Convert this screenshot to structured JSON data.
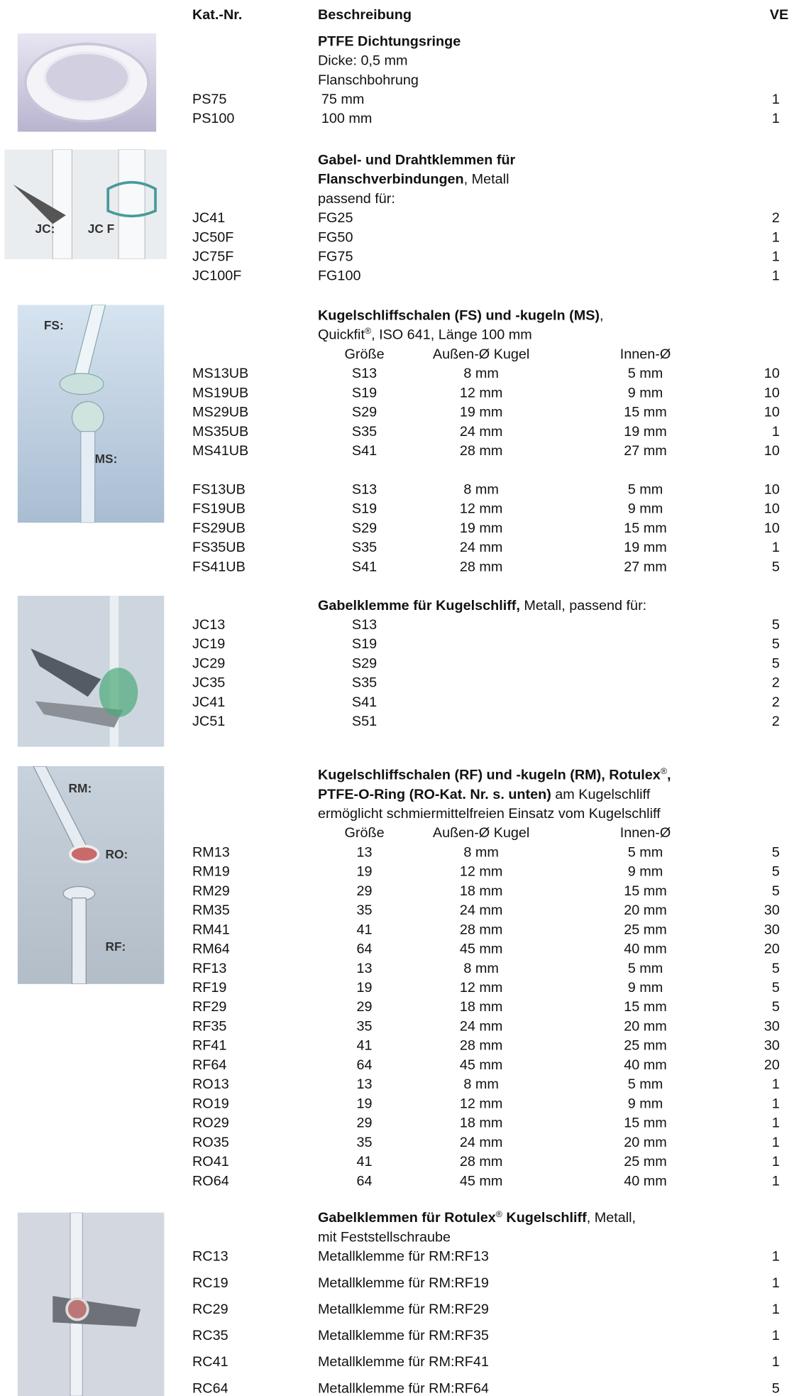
{
  "header": {
    "kat": "Kat.-Nr.",
    "desc": "Beschreibung",
    "ve": "VE"
  },
  "sections": [
    {
      "lines": [
        [
          {
            "text": "PTFE Dichtungsringe",
            "style": "b"
          }
        ],
        [
          {
            "text": "Dicke: 0,5 mm",
            "style": "n"
          }
        ],
        [
          {
            "text": "Flanschbohrung",
            "style": "n"
          }
        ]
      ],
      "rows": [
        {
          "code": "PS75",
          "cells": [
            "75 mm"
          ],
          "ve": "1"
        },
        {
          "code": "PS100",
          "cells": [
            "100 mm"
          ],
          "ve": "1"
        }
      ]
    },
    {
      "lines": [
        [
          {
            "text": "Gabel- und Drahtklemmen für",
            "style": "b"
          }
        ],
        [
          {
            "text": "Flanschverbindungen",
            "style": "b"
          },
          {
            "text": ", Metall",
            "style": "n"
          }
        ],
        [
          {
            "text": "passend für:",
            "style": "n"
          }
        ]
      ],
      "rows": [
        {
          "code": "JC41",
          "cells": [
            "FG25"
          ],
          "ve": "2"
        },
        {
          "code": "JC50F",
          "cells": [
            "FG50"
          ],
          "ve": "1"
        },
        {
          "code": "JC75F",
          "cells": [
            "FG75"
          ],
          "ve": "1"
        },
        {
          "code": "JC100F",
          "cells": [
            "FG100"
          ],
          "ve": "1"
        }
      ]
    },
    {
      "lines": [
        [
          {
            "text": "Kugelschliffschalen (FS) und -kugeln (MS)",
            "style": "b"
          },
          {
            "text": ",",
            "style": "n"
          }
        ],
        [
          {
            "text": "Quickfit",
            "style": "n"
          },
          {
            "text": "®",
            "style": "sup"
          },
          {
            "text": ", ISO 641, Länge 100 mm",
            "style": "n"
          }
        ]
      ],
      "columns": [
        "Größe",
        "Außen-Ø Kugel",
        "Innen-Ø"
      ],
      "rows": [
        {
          "code": "MS13UB",
          "cells": [
            "S13",
            "8 mm",
            "5 mm"
          ],
          "ve": "10"
        },
        {
          "code": "MS19UB",
          "cells": [
            "S19",
            "12 mm",
            "9 mm"
          ],
          "ve": "10"
        },
        {
          "code": "MS29UB",
          "cells": [
            "S29",
            "19 mm",
            "15 mm"
          ],
          "ve": "10"
        },
        {
          "code": "MS35UB",
          "cells": [
            "S35",
            "24 mm",
            "19 mm"
          ],
          "ve": "1"
        },
        {
          "code": "MS41UB",
          "cells": [
            "S41",
            "28 mm",
            "27 mm"
          ],
          "ve": "10"
        },
        {
          "code": "FS13UB",
          "cells": [
            "S13",
            "8 mm",
            "5 mm"
          ],
          "ve": "10"
        },
        {
          "code": "FS19UB",
          "cells": [
            "S19",
            "12 mm",
            "9 mm"
          ],
          "ve": "10"
        },
        {
          "code": "FS29UB",
          "cells": [
            "S29",
            "19 mm",
            "15 mm"
          ],
          "ve": "10"
        },
        {
          "code": "FS35UB",
          "cells": [
            "S35",
            "24 mm",
            "19 mm"
          ],
          "ve": "1"
        },
        {
          "code": "FS41UB",
          "cells": [
            "S41",
            "28 mm",
            "27 mm"
          ],
          "ve": "5"
        }
      ]
    },
    {
      "lines": [
        [
          {
            "text": "Gabelklemme für Kugelschliff,",
            "style": "b"
          },
          {
            "text": " Metall, passend für:",
            "style": "n"
          }
        ]
      ],
      "rows": [
        {
          "code": "JC13",
          "cells": [
            "S13"
          ],
          "ve": "5"
        },
        {
          "code": "JC19",
          "cells": [
            "S19"
          ],
          "ve": "5"
        },
        {
          "code": "JC29",
          "cells": [
            "S29"
          ],
          "ve": "5"
        },
        {
          "code": "JC35",
          "cells": [
            "S35"
          ],
          "ve": "2"
        },
        {
          "code": "JC41",
          "cells": [
            "S41"
          ],
          "ve": "2"
        },
        {
          "code": "JC51",
          "cells": [
            "S51"
          ],
          "ve": "2"
        }
      ]
    },
    {
      "lines": [
        [
          {
            "text": "Kugelschliffschalen (RF) und -kugeln (RM), Rotulex",
            "style": "b"
          },
          {
            "text": "®",
            "style": "sup"
          },
          {
            "text": ",",
            "style": "b"
          }
        ],
        [
          {
            "text": "PTFE-O-Ring (RO-Kat. Nr. s. unten)",
            "style": "b"
          },
          {
            "text": " am Kugelschliff",
            "style": "n"
          }
        ],
        [
          {
            "text": "ermöglicht schmiermittelfreien Einsatz vom Kugelschliff",
            "style": "n"
          }
        ]
      ],
      "columns": [
        "Größe",
        "Außen-Ø Kugel",
        "Innen-Ø"
      ],
      "rows": [
        {
          "code": "RM13",
          "cells": [
            "13",
            "8 mm",
            "5 mm"
          ],
          "ve": "5"
        },
        {
          "code": "RM19",
          "cells": [
            "19",
            "12 mm",
            "9 mm"
          ],
          "ve": "5"
        },
        {
          "code": "RM29",
          "cells": [
            "29",
            "18 mm",
            "15 mm"
          ],
          "ve": "5"
        },
        {
          "code": "RM35",
          "cells": [
            "35",
            "24 mm",
            "20 mm"
          ],
          "ve": "30"
        },
        {
          "code": "RM41",
          "cells": [
            "41",
            "28 mm",
            "25 mm"
          ],
          "ve": "30"
        },
        {
          "code": "RM64",
          "cells": [
            "64",
            "45 mm",
            "40 mm"
          ],
          "ve": "20"
        },
        {
          "code": "RF13",
          "cells": [
            "13",
            "8 mm",
            "5 mm"
          ],
          "ve": "5"
        },
        {
          "code": "RF19",
          "cells": [
            "19",
            "12 mm",
            "9 mm"
          ],
          "ve": "5"
        },
        {
          "code": "RF29",
          "cells": [
            "29",
            "18 mm",
            "15 mm"
          ],
          "ve": "5"
        },
        {
          "code": "RF35",
          "cells": [
            "35",
            "24 mm",
            "20 mm"
          ],
          "ve": "30"
        },
        {
          "code": "RF41",
          "cells": [
            "41",
            "28 mm",
            "25 mm"
          ],
          "ve": "30"
        },
        {
          "code": "RF64",
          "cells": [
            "64",
            "45 mm",
            "40 mm"
          ],
          "ve": "20"
        },
        {
          "code": "RO13",
          "cells": [
            "13",
            "8 mm",
            "5 mm"
          ],
          "ve": "1"
        },
        {
          "code": "RO19",
          "cells": [
            "19",
            "12 mm",
            "9 mm"
          ],
          "ve": "1"
        },
        {
          "code": "RO29",
          "cells": [
            "29",
            "18 mm",
            "15 mm"
          ],
          "ve": "1"
        },
        {
          "code": "RO35",
          "cells": [
            "35",
            "24 mm",
            "20 mm"
          ],
          "ve": "1"
        },
        {
          "code": "RO41",
          "cells": [
            "41",
            "28 mm",
            "25 mm"
          ],
          "ve": "1"
        },
        {
          "code": "RO64",
          "cells": [
            "64",
            "45 mm",
            "40 mm"
          ],
          "ve": "1"
        }
      ]
    },
    {
      "lines": [
        [
          {
            "text": "Gabelklemmen für Rotulex",
            "style": "b"
          },
          {
            "text": "®",
            "style": "sup"
          },
          {
            "text": " Kugelschliff",
            "style": "b"
          },
          {
            "text": ", Metall,",
            "style": "n"
          }
        ],
        [
          {
            "text": "mit Feststellschraube",
            "style": "n"
          }
        ]
      ],
      "rows": [
        {
          "code": "RC13",
          "cells": [
            "Metallklemme für RM:RF13"
          ],
          "ve": "1"
        },
        {
          "code": "RC19",
          "cells": [
            "Metallklemme für RM:RF19"
          ],
          "ve": "1"
        },
        {
          "code": "RC29",
          "cells": [
            "Metallklemme für RM:RF29"
          ],
          "ve": "1"
        },
        {
          "code": "RC35",
          "cells": [
            "Metallklemme für RM:RF35"
          ],
          "ve": "1"
        },
        {
          "code": "RC41",
          "cells": [
            "Metallklemme für RM:RF41"
          ],
          "ve": "1"
        },
        {
          "code": "RC64",
          "cells": [
            "Metallklemme für RM:RF64"
          ],
          "ve": "5"
        }
      ]
    }
  ],
  "images": {
    "fs": "FS:",
    "ms": "MS:",
    "rm": "RM:",
    "ro": "RO:",
    "rf": "RF:",
    "jc": "JC:",
    "jcf": "JC F"
  }
}
